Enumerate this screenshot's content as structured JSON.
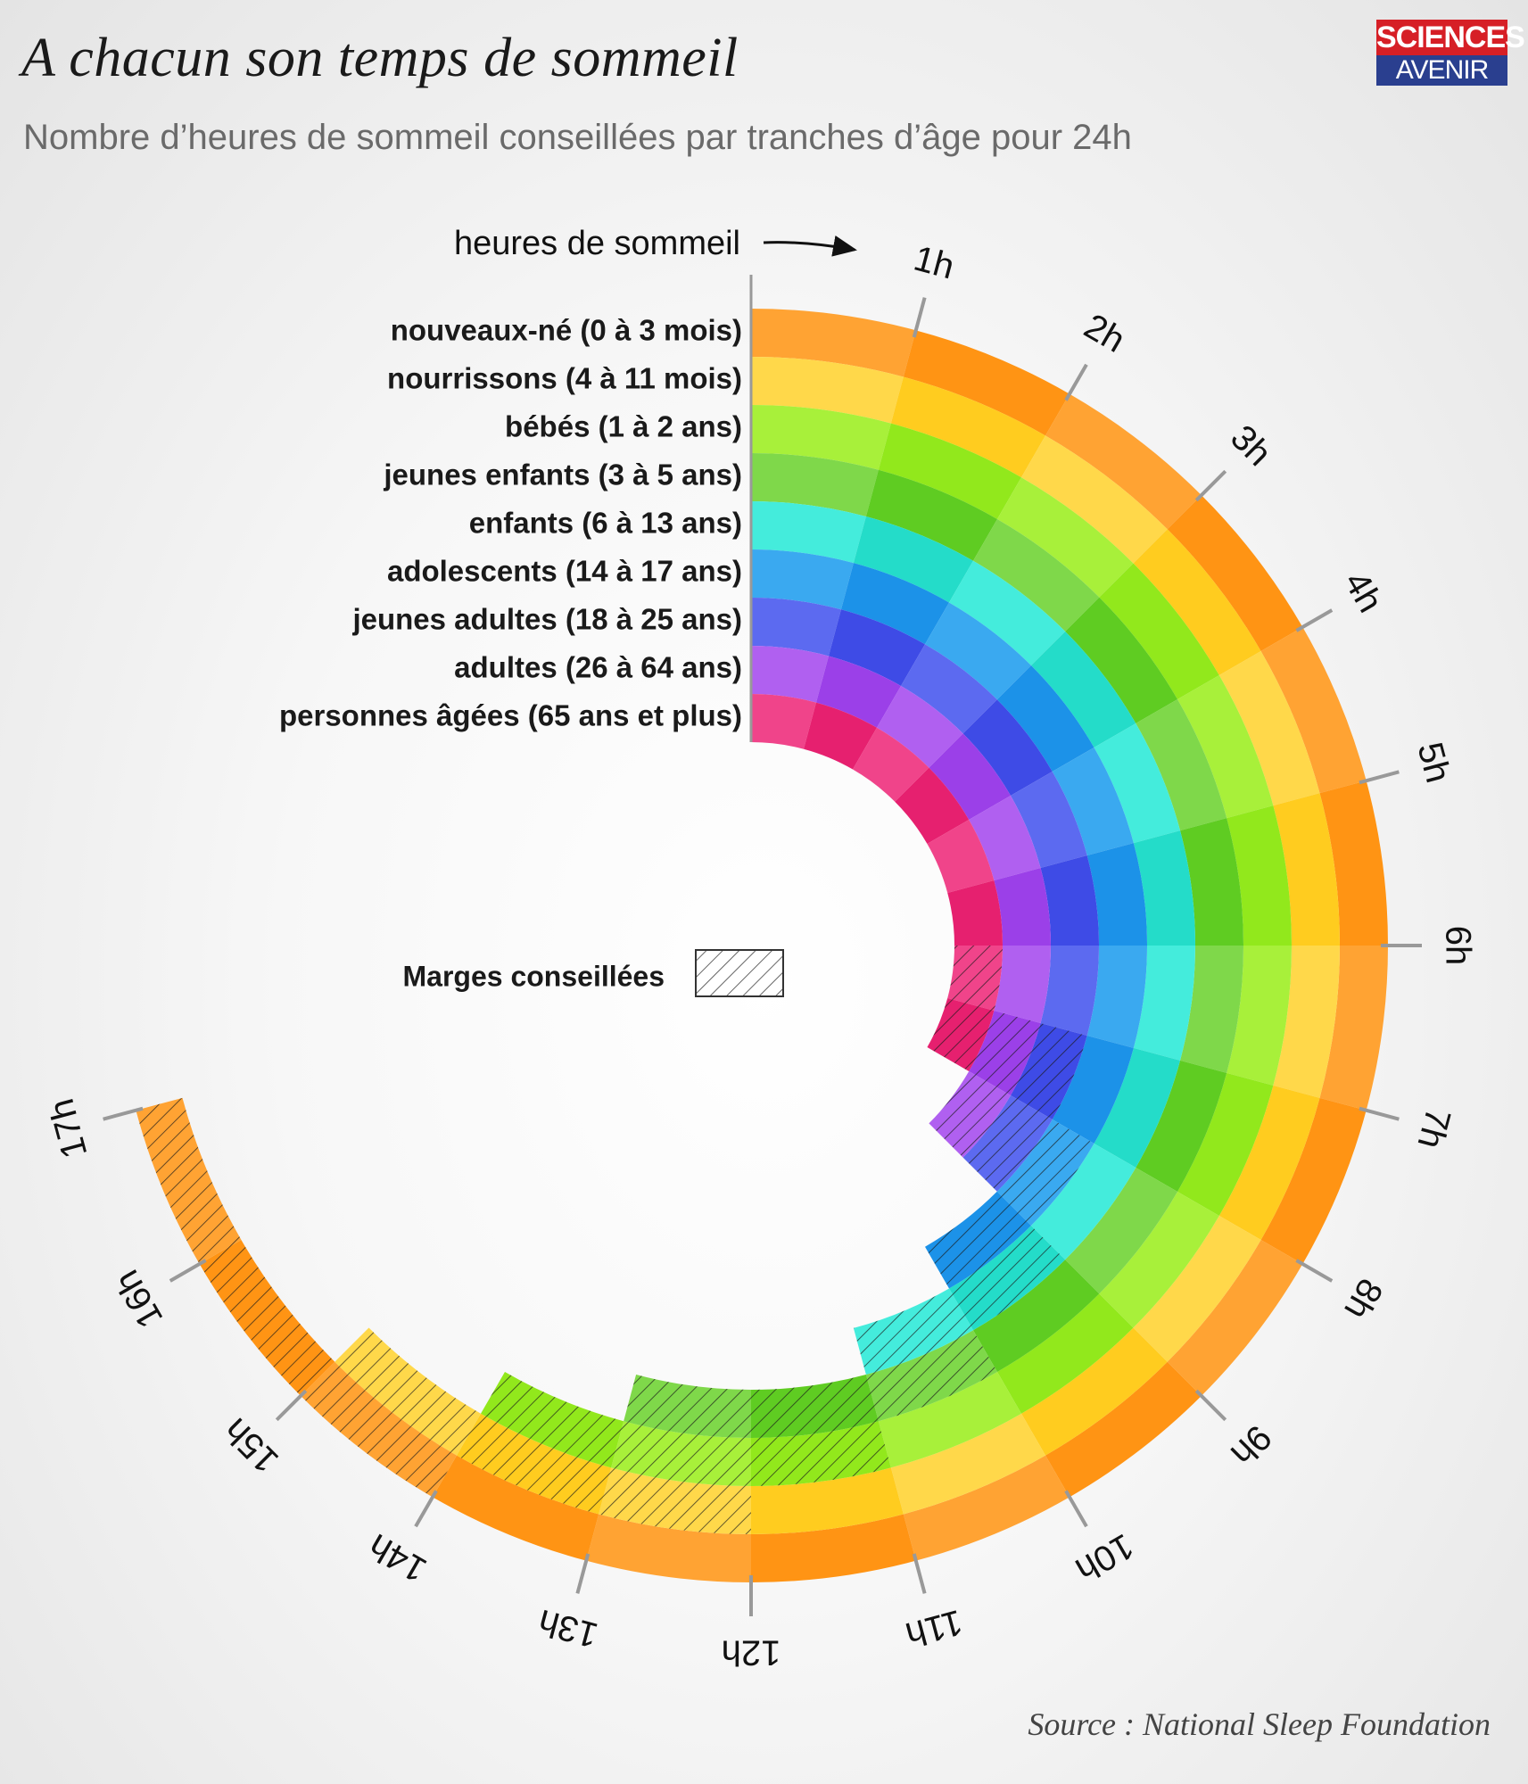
{
  "header": {
    "title": "A chacun son temps de sommeil",
    "subtitle": "Nombre d’heures de sommeil conseillées par tranches d’âge pour 24h",
    "logo_top": "SCIENCES",
    "logo_bottom": "AVENIR"
  },
  "footer": {
    "source": "Source : National Sleep Foundation"
  },
  "chart_data": {
    "type": "radial-bar",
    "axis_label": "heures de sommeil",
    "axis_range": [
      0,
      17
    ],
    "tick_labels": [
      "1h",
      "2h",
      "3h",
      "4h",
      "5h",
      "6h",
      "7h",
      "8h",
      "9h",
      "10h",
      "11h",
      "12h",
      "13h",
      "14h",
      "15h",
      "16h",
      "17h"
    ],
    "legend": {
      "label": "Marges conseillées"
    },
    "series": [
      {
        "name": "nouveaux-né (0 à 3 mois)",
        "recommended": 14,
        "margin_max": 17,
        "colors": [
          "#ffa333",
          "#ff9414"
        ]
      },
      {
        "name": "nourrissons (4 à 11 mois)",
        "recommended": 12,
        "margin_max": 15,
        "colors": [
          "#ffd84a",
          "#ffcc1f"
        ]
      },
      {
        "name": "bébés (1 à 2 ans)",
        "recommended": 11,
        "margin_max": 14,
        "colors": [
          "#a8f03a",
          "#92e81c"
        ]
      },
      {
        "name": "jeunes enfants (3 à 5 ans)",
        "recommended": 10,
        "margin_max": 13,
        "colors": [
          "#7fd84a",
          "#5fcc22"
        ]
      },
      {
        "name": "enfants (6 à 13 ans)",
        "recommended": 9,
        "margin_max": 11,
        "colors": [
          "#44ecdc",
          "#24dcc9"
        ]
      },
      {
        "name": "adolescents (14 à 17 ans)",
        "recommended": 8,
        "margin_max": 10,
        "colors": [
          "#3aa9f0",
          "#1c92e8"
        ]
      },
      {
        "name": "jeunes adultes (18 à 25 ans)",
        "recommended": 7,
        "margin_max": 9,
        "colors": [
          "#5c6af0",
          "#3e4be6"
        ]
      },
      {
        "name": "adultes (26 à 64 ans)",
        "recommended": 7,
        "margin_max": 9,
        "colors": [
          "#b060f0",
          "#9b40e8"
        ]
      },
      {
        "name": "personnes âgées (65 ans et plus)",
        "recommended": 6,
        "margin_max": 8,
        "colors": [
          "#f0448a",
          "#e6206f"
        ]
      }
    ]
  }
}
